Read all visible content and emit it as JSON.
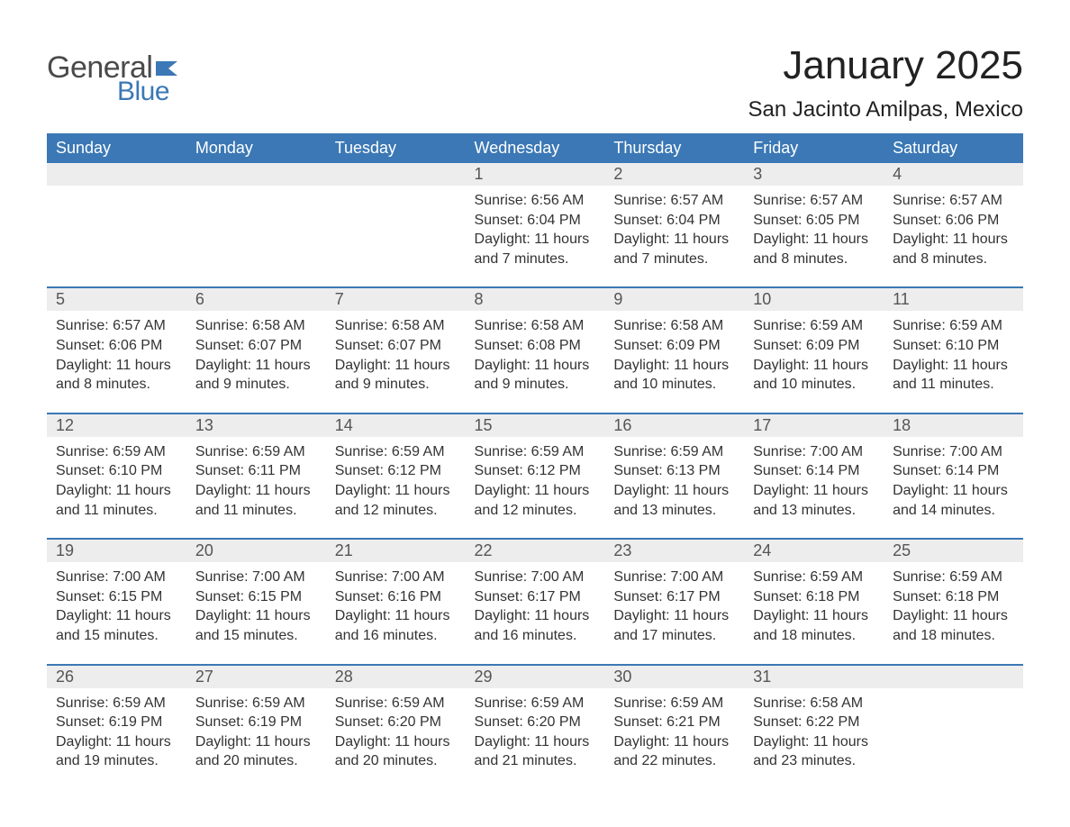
{
  "branding": {
    "logo_text_1": "General",
    "logo_text_2": "Blue",
    "logo_color_1": "#4a4a4a",
    "logo_color_2": "#3b78b5",
    "flag_color": "#3b78b5"
  },
  "header": {
    "month_title": "January 2025",
    "location": "San Jacinto Amilpas, Mexico"
  },
  "styling": {
    "header_bg": "#3b78b5",
    "header_text": "#ffffff",
    "daynum_bg": "#ededed",
    "daynum_text": "#555555",
    "body_text": "#333333",
    "row_separator": "#3b78b5",
    "page_bg": "#ffffff",
    "th_fontsize": 18,
    "daynum_fontsize": 18,
    "detail_fontsize": 16,
    "title_fontsize": 44,
    "location_fontsize": 24
  },
  "columns": [
    "Sunday",
    "Monday",
    "Tuesday",
    "Wednesday",
    "Thursday",
    "Friday",
    "Saturday"
  ],
  "weeks": [
    [
      null,
      null,
      null,
      {
        "day": "1",
        "sunrise": "6:56 AM",
        "sunset": "6:04 PM",
        "daylight": "11 hours and 7 minutes."
      },
      {
        "day": "2",
        "sunrise": "6:57 AM",
        "sunset": "6:04 PM",
        "daylight": "11 hours and 7 minutes."
      },
      {
        "day": "3",
        "sunrise": "6:57 AM",
        "sunset": "6:05 PM",
        "daylight": "11 hours and 8 minutes."
      },
      {
        "day": "4",
        "sunrise": "6:57 AM",
        "sunset": "6:06 PM",
        "daylight": "11 hours and 8 minutes."
      }
    ],
    [
      {
        "day": "5",
        "sunrise": "6:57 AM",
        "sunset": "6:06 PM",
        "daylight": "11 hours and 8 minutes."
      },
      {
        "day": "6",
        "sunrise": "6:58 AM",
        "sunset": "6:07 PM",
        "daylight": "11 hours and 9 minutes."
      },
      {
        "day": "7",
        "sunrise": "6:58 AM",
        "sunset": "6:07 PM",
        "daylight": "11 hours and 9 minutes."
      },
      {
        "day": "8",
        "sunrise": "6:58 AM",
        "sunset": "6:08 PM",
        "daylight": "11 hours and 9 minutes."
      },
      {
        "day": "9",
        "sunrise": "6:58 AM",
        "sunset": "6:09 PM",
        "daylight": "11 hours and 10 minutes."
      },
      {
        "day": "10",
        "sunrise": "6:59 AM",
        "sunset": "6:09 PM",
        "daylight": "11 hours and 10 minutes."
      },
      {
        "day": "11",
        "sunrise": "6:59 AM",
        "sunset": "6:10 PM",
        "daylight": "11 hours and 11 minutes."
      }
    ],
    [
      {
        "day": "12",
        "sunrise": "6:59 AM",
        "sunset": "6:10 PM",
        "daylight": "11 hours and 11 minutes."
      },
      {
        "day": "13",
        "sunrise": "6:59 AM",
        "sunset": "6:11 PM",
        "daylight": "11 hours and 11 minutes."
      },
      {
        "day": "14",
        "sunrise": "6:59 AM",
        "sunset": "6:12 PM",
        "daylight": "11 hours and 12 minutes."
      },
      {
        "day": "15",
        "sunrise": "6:59 AM",
        "sunset": "6:12 PM",
        "daylight": "11 hours and 12 minutes."
      },
      {
        "day": "16",
        "sunrise": "6:59 AM",
        "sunset": "6:13 PM",
        "daylight": "11 hours and 13 minutes."
      },
      {
        "day": "17",
        "sunrise": "7:00 AM",
        "sunset": "6:14 PM",
        "daylight": "11 hours and 13 minutes."
      },
      {
        "day": "18",
        "sunrise": "7:00 AM",
        "sunset": "6:14 PM",
        "daylight": "11 hours and 14 minutes."
      }
    ],
    [
      {
        "day": "19",
        "sunrise": "7:00 AM",
        "sunset": "6:15 PM",
        "daylight": "11 hours and 15 minutes."
      },
      {
        "day": "20",
        "sunrise": "7:00 AM",
        "sunset": "6:15 PM",
        "daylight": "11 hours and 15 minutes."
      },
      {
        "day": "21",
        "sunrise": "7:00 AM",
        "sunset": "6:16 PM",
        "daylight": "11 hours and 16 minutes."
      },
      {
        "day": "22",
        "sunrise": "7:00 AM",
        "sunset": "6:17 PM",
        "daylight": "11 hours and 16 minutes."
      },
      {
        "day": "23",
        "sunrise": "7:00 AM",
        "sunset": "6:17 PM",
        "daylight": "11 hours and 17 minutes."
      },
      {
        "day": "24",
        "sunrise": "6:59 AM",
        "sunset": "6:18 PM",
        "daylight": "11 hours and 18 minutes."
      },
      {
        "day": "25",
        "sunrise": "6:59 AM",
        "sunset": "6:18 PM",
        "daylight": "11 hours and 18 minutes."
      }
    ],
    [
      {
        "day": "26",
        "sunrise": "6:59 AM",
        "sunset": "6:19 PM",
        "daylight": "11 hours and 19 minutes."
      },
      {
        "day": "27",
        "sunrise": "6:59 AM",
        "sunset": "6:19 PM",
        "daylight": "11 hours and 20 minutes."
      },
      {
        "day": "28",
        "sunrise": "6:59 AM",
        "sunset": "6:20 PM",
        "daylight": "11 hours and 20 minutes."
      },
      {
        "day": "29",
        "sunrise": "6:59 AM",
        "sunset": "6:20 PM",
        "daylight": "11 hours and 21 minutes."
      },
      {
        "day": "30",
        "sunrise": "6:59 AM",
        "sunset": "6:21 PM",
        "daylight": "11 hours and 22 minutes."
      },
      {
        "day": "31",
        "sunrise": "6:58 AM",
        "sunset": "6:22 PM",
        "daylight": "11 hours and 23 minutes."
      },
      null
    ]
  ],
  "labels": {
    "sunrise": "Sunrise:",
    "sunset": "Sunset:",
    "daylight": "Daylight:"
  }
}
